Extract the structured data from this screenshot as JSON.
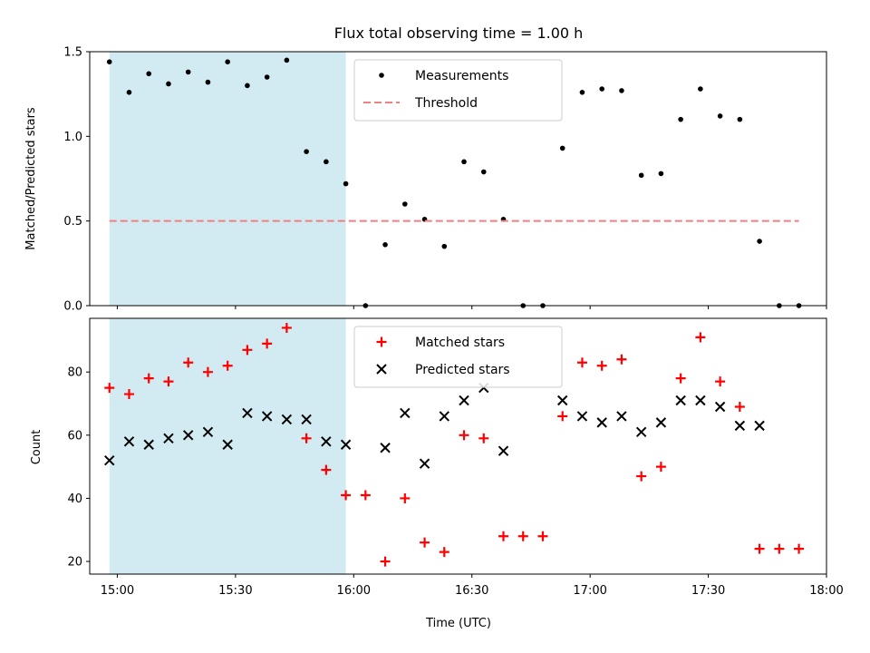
{
  "colors": {
    "shade": "#add8e6",
    "measurement": "#000000",
    "threshold": "#f08080",
    "matched": "#ff0000",
    "predicted": "#000000"
  },
  "chart_data": [
    {
      "type": "scatter",
      "title": "Flux total observing time = 1.00 h",
      "xlabel": "",
      "ylabel": "Matched/Predicted stars",
      "xlim": [
        "14:53",
        "18:00"
      ],
      "ylim": [
        0,
        1.5
      ],
      "yticks": [
        "0.0",
        "0.5",
        "1.0",
        "1.5"
      ],
      "shaded_span": [
        "14:58",
        "15:58"
      ],
      "legend": {
        "position": "top-center",
        "entries": [
          "Measurements",
          "Threshold"
        ]
      },
      "series": [
        {
          "name": "Measurements",
          "marker": "dot",
          "x": [
            "14:58",
            "15:03",
            "15:08",
            "15:13",
            "15:18",
            "15:23",
            "15:28",
            "15:33",
            "15:38",
            "15:43",
            "15:48",
            "15:53",
            "15:58",
            "16:03",
            "16:08",
            "16:13",
            "16:18",
            "16:23",
            "16:28",
            "16:33",
            "16:38",
            "16:43",
            "16:48",
            "16:53",
            "16:58",
            "17:03",
            "17:08",
            "17:13",
            "17:18",
            "17:23",
            "17:28",
            "17:33",
            "17:38",
            "17:43",
            "17:48",
            "17:53"
          ],
          "y": [
            1.44,
            1.26,
            1.37,
            1.31,
            1.38,
            1.32,
            1.44,
            1.3,
            1.35,
            1.45,
            0.91,
            0.85,
            0.72,
            0.0,
            0.36,
            0.6,
            0.51,
            0.35,
            0.85,
            0.79,
            0.51,
            0.0,
            0.0,
            0.93,
            1.26,
            1.28,
            1.27,
            0.77,
            0.78,
            1.1,
            1.28,
            1.12,
            1.1,
            0.38,
            0.0,
            0.0
          ]
        },
        {
          "name": "Threshold",
          "marker": "dashed-line",
          "x": [
            "14:58",
            "17:53"
          ],
          "y": [
            0.5,
            0.5
          ]
        }
      ]
    },
    {
      "type": "scatter",
      "title": "",
      "xlabel": "Time (UTC)",
      "ylabel": "Count",
      "xlim": [
        "14:53",
        "18:00"
      ],
      "ylim": [
        16,
        97
      ],
      "yticks": [
        "20",
        "40",
        "60",
        "80"
      ],
      "xticks": [
        "15:00",
        "15:30",
        "16:00",
        "16:30",
        "17:00",
        "17:30",
        "18:00"
      ],
      "shaded_span": [
        "14:58",
        "15:58"
      ],
      "legend": {
        "position": "top-center",
        "entries": [
          "Matched stars",
          "Predicted stars"
        ]
      },
      "series": [
        {
          "name": "Matched stars",
          "marker": "plus",
          "x": [
            "14:58",
            "15:03",
            "15:08",
            "15:13",
            "15:18",
            "15:23",
            "15:28",
            "15:33",
            "15:38",
            "15:43",
            "15:48",
            "15:53",
            "15:58",
            "16:03",
            "16:08",
            "16:13",
            "16:18",
            "16:23",
            "16:28",
            "16:33",
            "16:38",
            "16:43",
            "16:48",
            "16:53",
            "16:58",
            "17:03",
            "17:08",
            "17:13",
            "17:18",
            "17:23",
            "17:28",
            "17:33",
            "17:38",
            "17:43",
            "17:48",
            "17:53"
          ],
          "y": [
            75,
            73,
            78,
            77,
            83,
            80,
            82,
            87,
            89,
            94,
            59,
            49,
            41,
            41,
            20,
            40,
            26,
            23,
            60,
            59,
            28,
            28,
            28,
            66,
            83,
            82,
            84,
            47,
            50,
            78,
            91,
            77,
            69,
            24,
            24,
            24
          ]
        },
        {
          "name": "Predicted stars",
          "marker": "x",
          "x": [
            "14:58",
            "15:03",
            "15:08",
            "15:13",
            "15:18",
            "15:23",
            "15:28",
            "15:33",
            "15:38",
            "15:43",
            "15:48",
            "15:53",
            "15:58",
            "16:08",
            "16:13",
            "16:18",
            "16:23",
            "16:28",
            "16:33",
            "16:38",
            "16:53",
            "16:58",
            "17:03",
            "17:08",
            "17:13",
            "17:18",
            "17:23",
            "17:28",
            "17:33",
            "17:38",
            "17:43"
          ],
          "y": [
            52,
            58,
            57,
            59,
            60,
            61,
            57,
            67,
            66,
            65,
            65,
            58,
            57,
            56,
            67,
            51,
            66,
            71,
            75,
            55,
            71,
            66,
            64,
            66,
            61,
            64,
            71,
            71,
            69,
            63,
            63
          ]
        }
      ]
    }
  ]
}
